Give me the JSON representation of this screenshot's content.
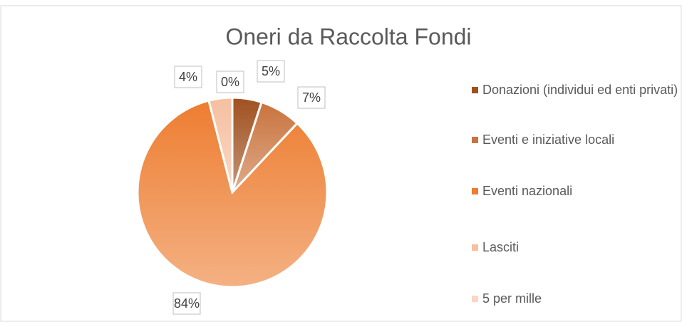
{
  "chart_data": {
    "type": "pie",
    "title": "Oneri da Raccolta Fondi",
    "categories": [
      "Donazioni (individui ed enti privati)",
      "Eventi e iniziative locali",
      "Eventi nazionali",
      "Lasciti",
      "5 per mille"
    ],
    "values": [
      5,
      7,
      84,
      4,
      0
    ],
    "value_labels": [
      "5%",
      "7%",
      "84%",
      "4%",
      "0%"
    ],
    "colors": [
      "#a0501f",
      "#c9733d",
      "#ed7d31",
      "#f6bfa0",
      "#fbd6c2"
    ],
    "legend": "right"
  }
}
